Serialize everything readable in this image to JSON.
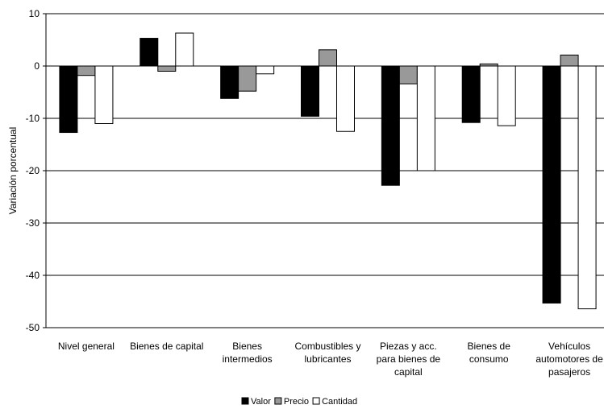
{
  "chart_data": {
    "type": "bar",
    "ylabel": "Variación porcentual",
    "ylim": [
      -50,
      10
    ],
    "yticks": [
      10,
      0,
      -10,
      -20,
      -30,
      -40,
      -50
    ],
    "grid": true,
    "legend_placement": "bottom",
    "categories": [
      [
        "Nivel general"
      ],
      [
        "Bienes de capital"
      ],
      [
        "Bienes",
        "intermedios"
      ],
      [
        "Combustibles y",
        "lubricantes"
      ],
      [
        "Piezas y acc.",
        "para bienes de",
        "capital"
      ],
      [
        "Bienes de",
        "consumo"
      ],
      [
        "Vehículos",
        "automotores de",
        "pasajeros"
      ]
    ],
    "series": [
      {
        "name": "Valor",
        "color": "#000000",
        "values": [
          -12.7,
          5.3,
          -6.2,
          -9.6,
          -22.8,
          -10.8,
          -45.3
        ]
      },
      {
        "name": "Precio",
        "color": "#999999",
        "values": [
          -1.8,
          -1.0,
          -4.8,
          3.1,
          -3.4,
          0.4,
          2.1
        ]
      },
      {
        "name": "Cantidad",
        "color": "#ffffff",
        "values": [
          -11.0,
          6.3,
          -1.5,
          -12.5,
          -20.0,
          -11.4,
          -46.4
        ]
      }
    ]
  }
}
